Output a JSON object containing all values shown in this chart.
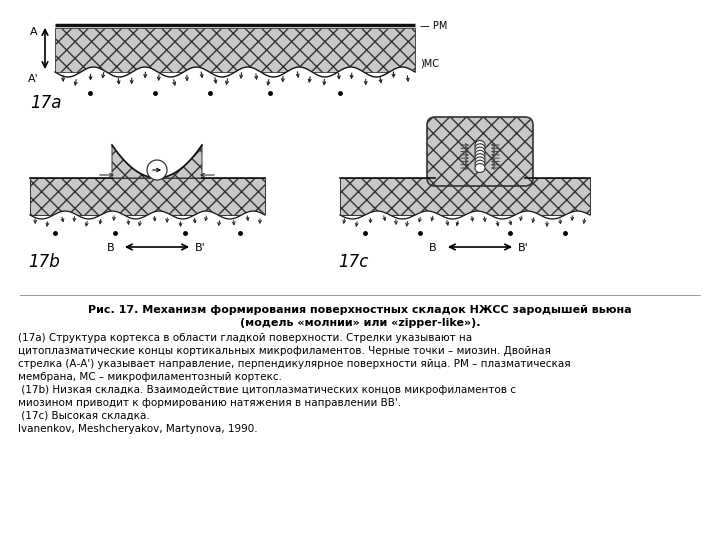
{
  "title_line1": "Рис. 17. Механизм формирования поверхностных складок НЖСС зародышей вьюна",
  "title_line2": "(модель «молнии» или «zipper-like»).",
  "body_text": [
    "(17a) Структура кортекса в области гладкой поверхности. Стрелки указывают на",
    "цитоплазматические концы кортикальных микрофиламентов. Черные точки – миозин. Двойная",
    "стрелка (А-А') указывает направление, перпендикулярное поверхности яйца. РМ – плазматическая",
    "мембрана, МС – микрофиламентозный кортекс.",
    " (17b) Низкая складка. Взаимодействие цитоплазматических концов микрофиламентов с",
    "миозином приводит к формированию натяжения в направлении ВВ'.",
    " (17c) Высокая складка.",
    "Ivanenkov, Meshcheryakov, Martynova, 1990."
  ],
  "bg_color": "#ffffff",
  "text_color": "#000000",
  "label_17a": "17a",
  "label_17b": "17b",
  "label_17c": "17c"
}
